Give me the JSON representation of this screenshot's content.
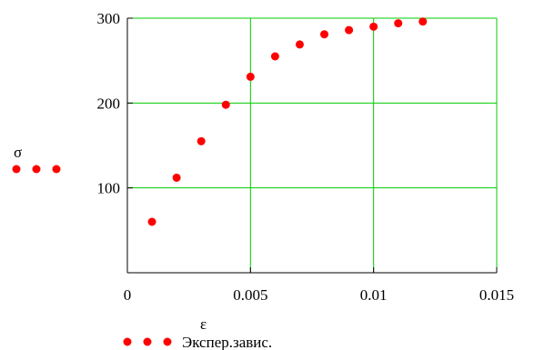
{
  "chart_data": {
    "type": "scatter",
    "ylabel": "σ",
    "xlabel": "ε",
    "xlim": [
      0,
      0.015
    ],
    "ylim": [
      0,
      300
    ],
    "x_ticks": [
      0,
      0.005,
      0.01,
      0.015
    ],
    "x_tick_labels": [
      "0",
      "0.005",
      "0.01",
      "0.015"
    ],
    "y_ticks": [
      100,
      200,
      300
    ],
    "y_tick_labels": [
      "100",
      "200",
      "300"
    ],
    "grid": true,
    "legend": "bottom-left",
    "series": [
      {
        "name": "Экспер.завис.",
        "x": [
          0.001,
          0.002,
          0.003,
          0.004,
          0.005,
          0.006,
          0.007,
          0.008,
          0.009,
          0.01,
          0.011,
          0.012
        ],
        "y": [
          60,
          112,
          155,
          198,
          231,
          255,
          269,
          281,
          286,
          290,
          294,
          296
        ]
      }
    ],
    "colors": {
      "marker": "#ff0000",
      "grid": "#00cc00",
      "axis": "#000000"
    }
  }
}
